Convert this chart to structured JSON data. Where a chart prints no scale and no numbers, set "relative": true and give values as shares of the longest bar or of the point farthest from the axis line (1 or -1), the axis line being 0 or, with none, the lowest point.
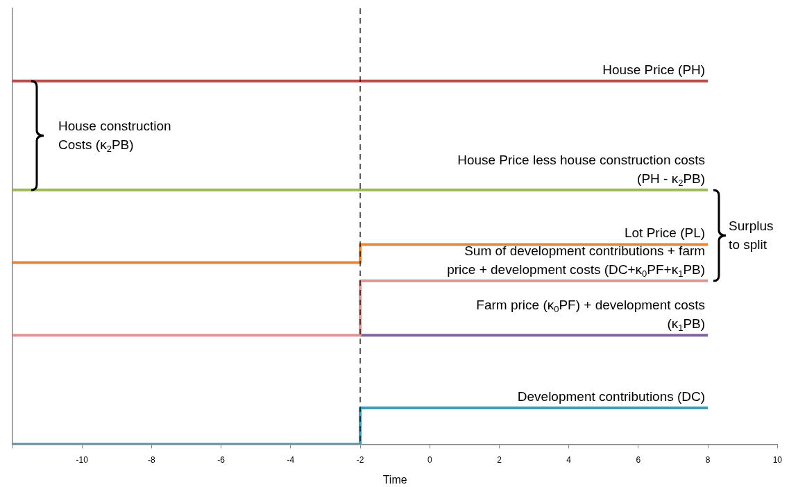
{
  "chart_data": {
    "type": "step",
    "relative": true,
    "xlabel": "Time",
    "xlim": [
      -12,
      10
    ],
    "xticks": [
      {
        "value": -12,
        "label": null
      },
      -10,
      -8,
      -6,
      -4,
      -2,
      0,
      2,
      4,
      6,
      8,
      10
    ],
    "grid": false,
    "legend": false,
    "marker": "none",
    "line_style": "solid",
    "series": [
      {
        "name": "House Price (PH)",
        "color": "#be4b48",
        "x": [
          -12,
          8
        ],
        "values": [
          1,
          1
        ]
      },
      {
        "name": "House Price less house construction costs (PH - κ$_{2}$PB)",
        "color": "#9bbb59",
        "x": [
          -12,
          8
        ],
        "values": [
          0.7,
          0.7
        ]
      },
      {
        "name": "Lot Price (PL)",
        "color": "#e8863a",
        "x": [
          -12,
          -2,
          8
        ],
        "values": [
          0.5,
          0.55,
          0.55
        ]
      },
      {
        "name": "Sum of development contributions + farm price + development costs (DC+κ$_{0}$PF+κ$_{1}$PB)",
        "color": "#d99694",
        "x": [
          -12,
          -2,
          8
        ],
        "values": [
          0.3,
          0.45,
          0.45
        ]
      },
      {
        "name": "Farm price (κ$_{0}$PF) + development costs (κ$_{1}$PB)",
        "color": "#7f63a1",
        "x": [
          -2,
          8
        ],
        "values": [
          0.3,
          0.3
        ]
      },
      {
        "name": "Development contributions (DC)",
        "color": "#3f9ab5",
        "x": [
          -12,
          -2,
          8
        ],
        "values": [
          0,
          0.1,
          0.1
        ]
      }
    ],
    "ref_lines": [
      {
        "axis": "x",
        "value": -2,
        "color": "#000000",
        "line_style": "dashed"
      }
    ],
    "annotations": [
      "House construction Costs (κ$_{2}$PB)",
      "Surplus to split"
    ]
  }
}
